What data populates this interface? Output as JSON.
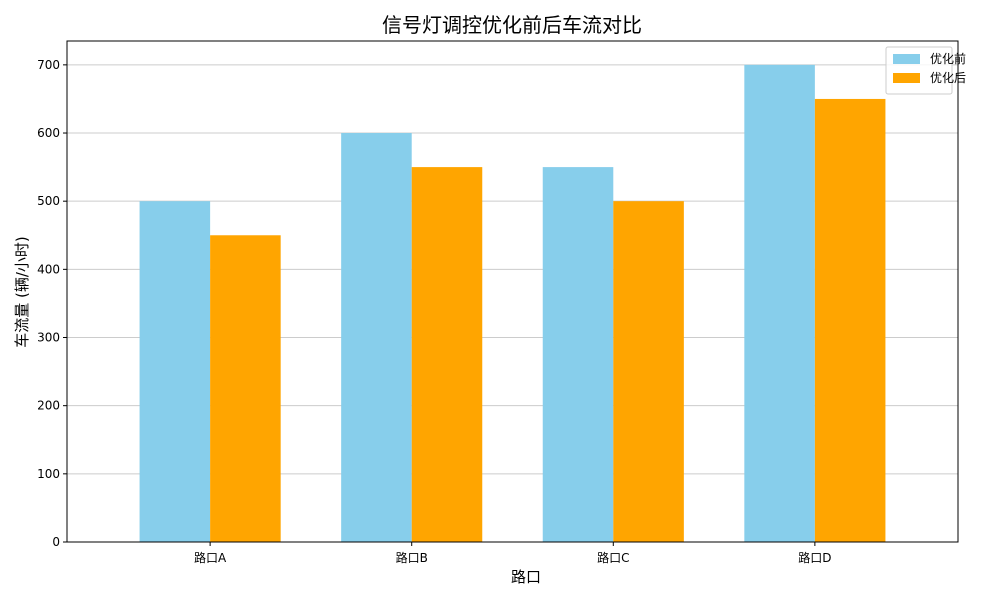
{
  "chart_data": {
    "type": "bar",
    "title": "信号灯调控优化前后车流对比",
    "xlabel": "路口",
    "ylabel": "车流量 (辆/小时)",
    "categories": [
      "路口A",
      "路口B",
      "路口C",
      "路口D"
    ],
    "series": [
      {
        "name": "优化前",
        "values": [
          500,
          600,
          550,
          700
        ],
        "color": "#87CEEB"
      },
      {
        "name": "优化后",
        "values": [
          450,
          550,
          500,
          650
        ],
        "color": "#FFA500"
      }
    ],
    "ylim": [
      0,
      735
    ],
    "yticks": [
      0,
      100,
      200,
      300,
      400,
      500,
      600,
      700
    ],
    "grid": "y",
    "legend": "top-right"
  }
}
